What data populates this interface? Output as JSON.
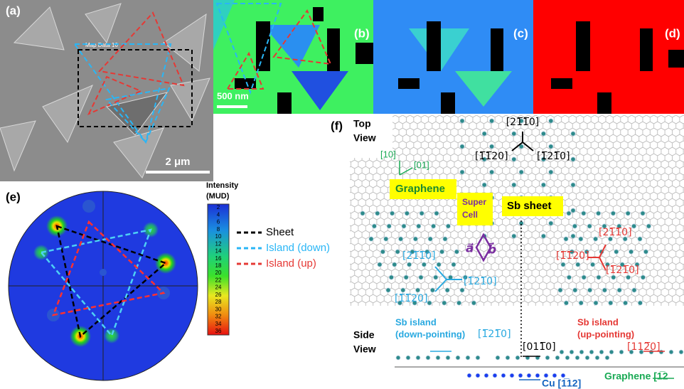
{
  "panels": {
    "a": {
      "label": "(a)",
      "map_label": "Map Data 16",
      "scale_bar": "2 μm"
    },
    "b": {
      "label": "(b)",
      "scale_bar": "500 nm"
    },
    "c": {
      "label": "(c)"
    },
    "d": {
      "label": "(d)"
    },
    "e": {
      "label": "(e)",
      "colorbar": {
        "title": "Intensity",
        "unit": "(MUD)",
        "ticks": [
          2,
          4,
          6,
          8,
          10,
          12,
          14,
          16,
          18,
          20,
          22,
          24,
          26,
          28,
          30,
          32,
          34,
          36
        ]
      },
      "legend": [
        "Sheet",
        "Island (down)",
        "Island (up)"
      ]
    },
    "f": {
      "label": "(f)",
      "top_view": [
        "Top",
        "View"
      ],
      "side_view": [
        "Side",
        "View"
      ],
      "graphene_dirs": [
        "[10]",
        "[01]"
      ],
      "graphene": "Graphene",
      "super_cell": [
        "Super",
        "Cell"
      ],
      "sb_sheet": "Sb sheet",
      "sheet_dirs": [
        "[21̅1̅0]",
        "[1̅1̅20]",
        "[1̅21̅0]"
      ],
      "up_dirs": [
        "[21̅1̅0]",
        "[1̅1̅20]",
        "[1̅21̅0]"
      ],
      "down_dirs": [
        "[21̅1̅0]",
        "[1̅21̅0]",
        "[1̅1̅20]"
      ],
      "vectors": [
        "a⃗",
        "b⃗"
      ],
      "down_island": [
        "Sb island",
        "(down-pointing)"
      ],
      "down_side_dir": "[1̅21̅0]",
      "up_island": [
        "Sb island",
        "(up-pointing)"
      ],
      "up_side_dir": "[112̅0]",
      "sheet_side_dir": "[011̅0]",
      "cu_dir": "Cu [1̅12]",
      "graphene_side": "Graphene [1̅2"
    }
  }
}
